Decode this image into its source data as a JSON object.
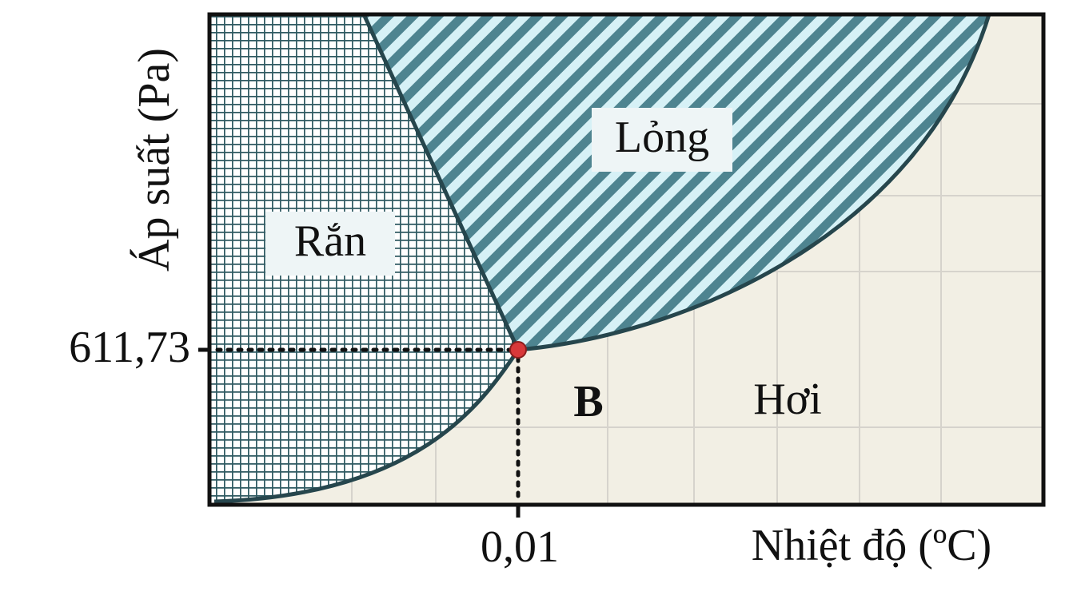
{
  "axes": {
    "y_label": "Áp suất (Pa)",
    "x_label": "Nhiệt độ (ºC)",
    "y_tick": "611,73",
    "x_tick": "0,01"
  },
  "regions": {
    "solid": "Rắn",
    "liquid": "Lỏng",
    "vapor": "Hơi"
  },
  "point_label": "B"
}
